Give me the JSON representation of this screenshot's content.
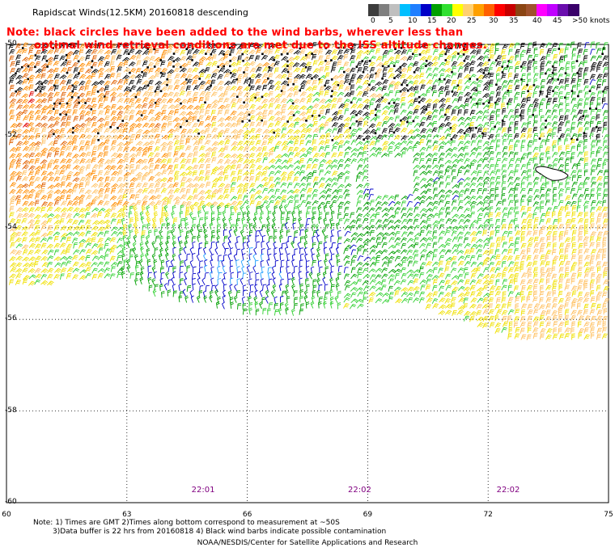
{
  "title": "Rapidscat Winds(12.5KM) 20160818 descending",
  "note": {
    "line1": "Note: black circles have been added to the wind barbs, wherever less than",
    "line2": "optimal wind retrieval conditions are met due to the ISS altitude changes."
  },
  "colorbar": {
    "labels": [
      "0",
      "5",
      "10",
      "15",
      "20",
      "25",
      "30",
      "35",
      "40",
      "45",
      ">50 knots"
    ],
    "colors": [
      "#3c3c3c",
      "#7f7f7f",
      "#bfbfbf",
      "#00bfff",
      "#1f7fff",
      "#0000c8",
      "#00a000",
      "#30e030",
      "#ffff00",
      "#ffd070",
      "#ffa000",
      "#ff6000",
      "#ff0000",
      "#c80000",
      "#8b4513",
      "#a0522d",
      "#ff00ff",
      "#c000ff",
      "#6a0dad",
      "#3a006a"
    ]
  },
  "map": {
    "lat_labels": [
      "-50",
      "-52",
      "-54",
      "-56",
      "-58",
      "-60"
    ],
    "lon_labels": [
      "60",
      "63",
      "66",
      "69",
      "72",
      "75"
    ],
    "times": [
      "22:01",
      "22:02",
      "22:02"
    ],
    "lat_range": [
      -60,
      -50
    ],
    "lon_range": [
      60,
      75
    ]
  },
  "footnote": {
    "line1": "Note: 1) Times are GMT 2)Times along bottom correspond to measurement at ~50S",
    "line2": "3)Data buffer is 22 hrs from 20160818 4) Black wind barbs indicate possible contamination"
  },
  "credit": "NOAA/NESDIS/Center for Satellite Applications and Research"
}
